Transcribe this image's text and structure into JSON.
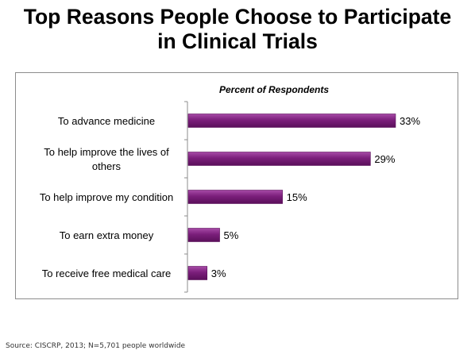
{
  "title_lines": [
    "Top Reasons People Choose to Participate",
    "in Clinical Trials"
  ],
  "source": "Source: CISCRP, 2013; N=5,701 people worldwide",
  "chart_data": {
    "type": "bar",
    "orientation": "horizontal",
    "subtitle": "Percent of Respondents",
    "categories": [
      [
        "To advance medicine"
      ],
      [
        "To help improve the lives of",
        "others"
      ],
      [
        "To help improve my condition"
      ],
      [
        "To earn extra money"
      ],
      [
        "To receive free medical care"
      ]
    ],
    "values": [
      33,
      29,
      15,
      5,
      3
    ],
    "value_labels": [
      "33%",
      "29%",
      "15%",
      "5%",
      "3%"
    ],
    "xlim": [
      0,
      40
    ],
    "bar_color": "#7b1f7b",
    "grid": false,
    "legend": "none"
  }
}
